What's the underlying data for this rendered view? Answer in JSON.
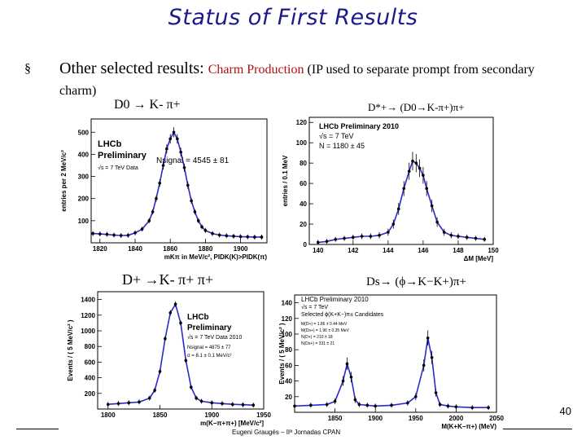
{
  "slide": {
    "title": "Status of First Results",
    "bullet_marker": "§",
    "bullet_main": "Other selected results: ",
    "bullet_highlight": "Charm Production",
    "bullet_rest": " (IP used to separate prompt from secondary charm)",
    "page_number": "40",
    "footer": "Eugeni Graugés – IIª Jornadas CPAN"
  },
  "panels": [
    {
      "title": "D0 → K- π+"
    },
    {
      "title": "D*+→ (D0→K-π+)π+"
    },
    {
      "title": "D+ →K- π+ π+"
    },
    {
      "title": "Ds→ (ϕ→K−K+)π+"
    }
  ],
  "chart_data": [
    {
      "type": "scatter",
      "title": "",
      "xlabel": "mKπ in MeV/c², PIDK(K)>PIDK(π)",
      "ylabel": "entries per 2 MeV/c²",
      "xlim": [
        1815,
        1915
      ],
      "ylim": [
        0,
        560
      ],
      "x_ticks": [
        "1820",
        "1840",
        "1860",
        "1880",
        "1900"
      ],
      "y_ticks": [
        "100",
        "200",
        "300",
        "400",
        "500"
      ],
      "annotations": [
        "LHCb",
        "Preliminary",
        "√s = 7 TeV Data",
        "Nsignal = 4545 ± 81"
      ],
      "series": [
        {
          "x": [
            1816,
            1820,
            1824,
            1828,
            1832,
            1836,
            1840,
            1844,
            1848,
            1850,
            1852,
            1854,
            1856,
            1858,
            1860,
            1862,
            1864,
            1866,
            1868,
            1870,
            1872,
            1874,
            1876,
            1878,
            1880,
            1884,
            1888,
            1892,
            1896,
            1900,
            1904,
            1908,
            1912
          ],
          "y": [
            42,
            40,
            38,
            35,
            33,
            34,
            45,
            62,
            100,
            140,
            200,
            270,
            350,
            425,
            470,
            500,
            470,
            410,
            340,
            260,
            190,
            140,
            100,
            72,
            56,
            42,
            35,
            32,
            30,
            28,
            27,
            26,
            26
          ]
        }
      ]
    },
    {
      "type": "scatter",
      "title": "",
      "xlabel": "ΔM [MeV]",
      "ylabel": "entries / 0.1 MeV",
      "xlim": [
        139.5,
        150
      ],
      "ylim": [
        0,
        125
      ],
      "x_ticks": [
        "140",
        "142",
        "144",
        "146",
        "148",
        "150"
      ],
      "y_ticks": [
        "0",
        "20",
        "40",
        "60",
        "80",
        "100",
        "120"
      ],
      "annotations": [
        "LHCb Preliminary 2010",
        "√s = 7 TeV",
        "N = 1180 ± 45"
      ],
      "series": [
        {
          "x": [
            140,
            140.5,
            141,
            141.5,
            142,
            142.5,
            143,
            143.5,
            144,
            144.3,
            144.6,
            144.9,
            145.2,
            145.4,
            145.6,
            145.8,
            146,
            146.2,
            146.5,
            146.8,
            147.2,
            147.6,
            148,
            148.5,
            149,
            149.5
          ],
          "y": [
            2,
            3,
            5,
            6,
            7,
            8,
            8,
            9,
            12,
            20,
            35,
            55,
            72,
            82,
            80,
            75,
            68,
            55,
            38,
            22,
            12,
            9,
            8,
            7,
            6,
            5
          ]
        }
      ]
    },
    {
      "type": "scatter",
      "title": "",
      "xlabel": "m(K−π+π+) [MeV/c²]",
      "ylabel": "Events / ( 5 MeV/c² )",
      "xlim": [
        1790,
        1950
      ],
      "ylim": [
        0,
        1500
      ],
      "x_ticks": [
        "1800",
        "1850",
        "1900",
        "1950"
      ],
      "y_ticks": [
        "200",
        "400",
        "600",
        "800",
        "1000",
        "1200",
        "1400"
      ],
      "annotations": [
        "LHCb",
        "Preliminary",
        "√s = 7 TeV Data 2010",
        "Nsignal = 4875 ± 77",
        "σ = 8.1 ± 0.1 MeV/c²"
      ],
      "series": [
        {
          "x": [
            1800,
            1810,
            1820,
            1830,
            1840,
            1845,
            1850,
            1855,
            1860,
            1865,
            1870,
            1875,
            1880,
            1885,
            1890,
            1900,
            1910,
            1920,
            1930,
            1940
          ],
          "y": [
            60,
            70,
            80,
            90,
            140,
            240,
            480,
            900,
            1230,
            1340,
            1100,
            620,
            280,
            140,
            100,
            80,
            70,
            60,
            55,
            50
          ]
        }
      ]
    },
    {
      "type": "scatter",
      "title": "",
      "xlabel": "M(K+K−π+) (MeV)",
      "ylabel": "Events / ( 5 MeV/c² )",
      "xlim": [
        1800,
        2050
      ],
      "ylim": [
        0,
        150
      ],
      "x_ticks": [
        "1850",
        "1900",
        "1950",
        "2000",
        "2050"
      ],
      "y_ticks": [
        "20",
        "40",
        "60",
        "80",
        "100",
        "120",
        "140"
      ],
      "annotations": [
        "LHCb Preliminary 2010",
        "√s = 7 TeV",
        "Selected ϕ(K+K−)π± Candidates",
        "M(D+) = 1.86 ± 0.44 MeV",
        "M(Ds+) = 1.96 ± 0.35 MeV",
        "N(D+) = 210 ± 18",
        "N(Ds+) = 331 ± 21"
      ],
      "series": [
        {
          "x": [
            1800,
            1820,
            1840,
            1850,
            1860,
            1865,
            1870,
            1875,
            1880,
            1890,
            1900,
            1920,
            1940,
            1950,
            1960,
            1965,
            1970,
            1975,
            1980,
            1990,
            2000,
            2020,
            2040
          ],
          "y": [
            8,
            9,
            10,
            14,
            40,
            62,
            45,
            16,
            10,
            9,
            8,
            9,
            12,
            20,
            60,
            95,
            70,
            25,
            10,
            8,
            7,
            6,
            6
          ]
        }
      ]
    }
  ]
}
